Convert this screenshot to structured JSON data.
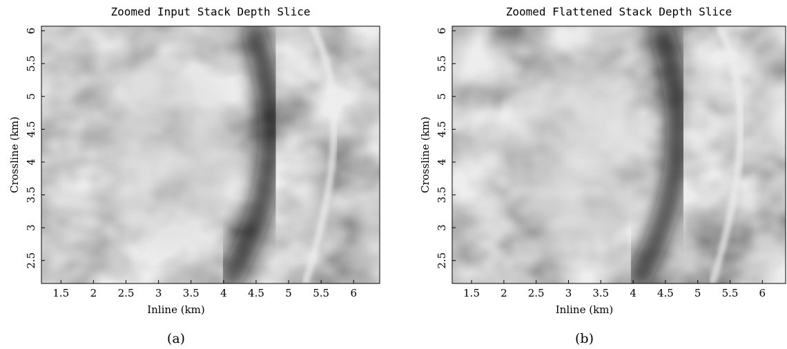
{
  "chart_data": [
    {
      "type": "image",
      "title": "Zoomed Input Stack Depth Slice",
      "xlabel": "Inline (km)",
      "ylabel": "Crossline (km)",
      "caption": "(a)",
      "xlim": [
        1.2,
        6.4
      ],
      "ylim": [
        2.15,
        6.07
      ],
      "xticks": [
        1.5,
        2,
        2.5,
        3,
        3.5,
        4,
        4.5,
        5,
        5.5,
        6
      ],
      "yticks": [
        2.5,
        3,
        3.5,
        4,
        4.5,
        5,
        5.5,
        6
      ]
    },
    {
      "type": "image",
      "title": "Zoomed Flattened Stack Depth Slice",
      "xlabel": "Inline (km)",
      "ylabel": "Crossline (km)",
      "caption": "(b)",
      "xlim": [
        1.2,
        6.36
      ],
      "ylim": [
        2.15,
        6.07
      ],
      "xticks": [
        1.5,
        2,
        2.5,
        3,
        3.5,
        4,
        4.5,
        5,
        5.5,
        6
      ],
      "yticks": [
        2.5,
        3,
        3.5,
        4,
        4.5,
        5,
        5.5,
        6
      ]
    }
  ]
}
